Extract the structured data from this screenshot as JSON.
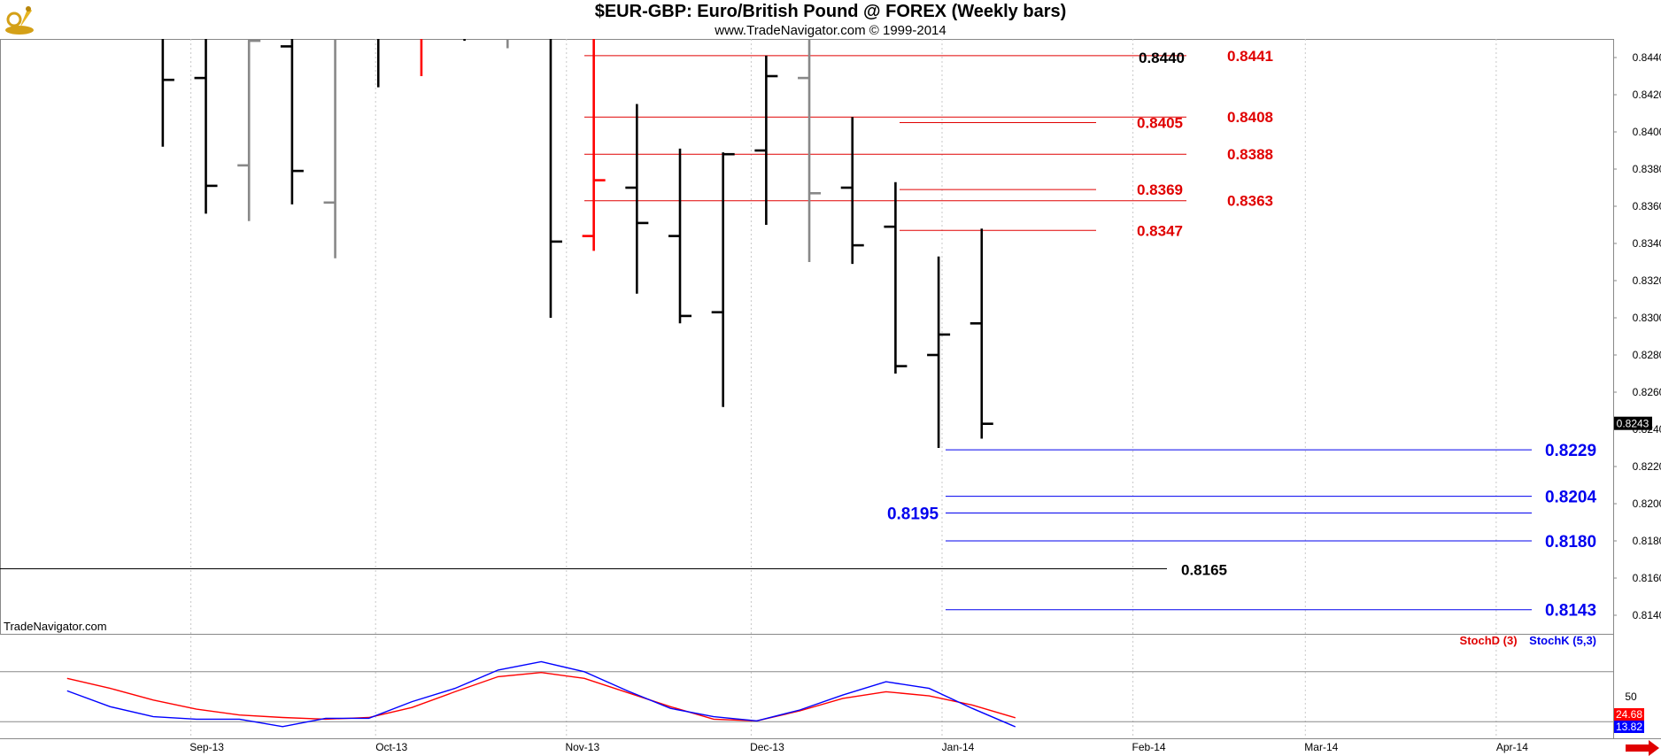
{
  "header": {
    "title": "$EUR-GBP:  Euro/British Pound @ FOREX  (Weekly bars)",
    "subtitle": "www.TradeNavigator.com © 1999-2014"
  },
  "watermark": "TradeNavigator.com",
  "legend": {
    "stoch_d": "StochD (3)",
    "stoch_k": "StochK (5,3)"
  },
  "colors": {
    "up_bar": "#000000",
    "down_bar": "#888888",
    "red_bar": "#ff0000",
    "resistance": "#e00000",
    "support": "#0000ee",
    "stoch_d": "#ff0000",
    "stoch_k": "#0000ff",
    "grid": "#c8c8c8"
  },
  "chart_data": [
    {
      "type": "ohlc",
      "title": "$EUR-GBP:  Euro/British Pound @ FOREX  (Weekly bars)",
      "ylim": [
        0.813,
        0.845
      ],
      "y_ticks": [
        "0.8440",
        "0.8420",
        "0.8400",
        "0.8380",
        "0.8360",
        "0.8340",
        "0.8320",
        "0.8300",
        "0.8280",
        "0.8260",
        "0.8240",
        "0.8220",
        "0.8200",
        "0.8180",
        "0.8160",
        "0.8140"
      ],
      "x_ticks": [
        {
          "label": "Sep-13",
          "date": "2013-09-01"
        },
        {
          "label": "Oct-13",
          "date": "2013-10-01"
        },
        {
          "label": "Nov-13",
          "date": "2013-11-01"
        },
        {
          "label": "Dec-13",
          "date": "2013-12-01"
        },
        {
          "label": "Jan-14",
          "date": "2014-01-01"
        },
        {
          "label": "Feb-14",
          "date": "2014-02-01"
        },
        {
          "label": "Mar-14",
          "date": "2014-03-01"
        },
        {
          "label": "Apr-14",
          "date": "2014-04-01"
        }
      ],
      "last_price": "0.8243",
      "bars": [
        {
          "date": "2013-08-26",
          "open": 0.845,
          "high": 0.845,
          "low": 0.8392,
          "close": 0.8428,
          "color": "black"
        },
        {
          "date": "2013-09-02",
          "open": 0.8429,
          "high": 0.845,
          "low": 0.8356,
          "close": 0.8371,
          "color": "black"
        },
        {
          "date": "2013-09-09",
          "open": 0.8382,
          "high": 0.845,
          "low": 0.8352,
          "close": 0.8449,
          "color": "gray"
        },
        {
          "date": "2013-09-16",
          "open": 0.8446,
          "high": 0.845,
          "low": 0.8361,
          "close": 0.8379,
          "color": "black"
        },
        {
          "date": "2013-09-23",
          "open": 0.8362,
          "high": 0.845,
          "low": 0.8332,
          "close": 0.845,
          "color": "gray"
        },
        {
          "date": "2013-09-30",
          "open": 0.845,
          "high": 0.845,
          "low": 0.8424,
          "close": 0.845,
          "color": "black"
        },
        {
          "date": "2013-10-07",
          "open": 0.845,
          "high": 0.845,
          "low": 0.843,
          "close": 0.845,
          "color": "red"
        },
        {
          "date": "2013-10-14",
          "open": 0.845,
          "high": 0.845,
          "low": 0.8449,
          "close": 0.845,
          "color": "black"
        },
        {
          "date": "2013-10-21",
          "open": 0.845,
          "high": 0.845,
          "low": 0.8445,
          "close": 0.845,
          "color": "gray"
        },
        {
          "date": "2013-10-28",
          "open": 0.845,
          "high": 0.845,
          "low": 0.83,
          "close": 0.8341,
          "color": "black"
        },
        {
          "date": "2013-11-04",
          "open": 0.8344,
          "high": 0.845,
          "low": 0.8336,
          "close": 0.8374,
          "color": "red"
        },
        {
          "date": "2013-11-11",
          "open": 0.837,
          "high": 0.8415,
          "low": 0.8313,
          "close": 0.8351,
          "color": "black"
        },
        {
          "date": "2013-11-18",
          "open": 0.8344,
          "high": 0.8391,
          "low": 0.8297,
          "close": 0.8301,
          "color": "black"
        },
        {
          "date": "2013-11-25",
          "open": 0.8303,
          "high": 0.8389,
          "low": 0.8252,
          "close": 0.8388,
          "color": "black"
        },
        {
          "date": "2013-12-02",
          "open": 0.839,
          "high": 0.8441,
          "low": 0.835,
          "close": 0.843,
          "color": "black"
        },
        {
          "date": "2013-12-09",
          "open": 0.8429,
          "high": 0.845,
          "low": 0.833,
          "close": 0.8367,
          "color": "gray"
        },
        {
          "date": "2013-12-16",
          "open": 0.837,
          "high": 0.8408,
          "low": 0.8329,
          "close": 0.8339,
          "color": "black"
        },
        {
          "date": "2013-12-23",
          "open": 0.8349,
          "high": 0.8373,
          "low": 0.827,
          "close": 0.8274,
          "color": "black"
        },
        {
          "date": "2013-12-30",
          "open": 0.828,
          "high": 0.8333,
          "low": 0.823,
          "close": 0.8291,
          "color": "black"
        },
        {
          "date": "2014-01-06",
          "open": 0.8297,
          "high": 0.8348,
          "low": 0.8235,
          "close": 0.8243,
          "color": "black"
        }
      ],
      "resistance_levels": [
        {
          "label": "0.8441",
          "value": 0.8441
        },
        {
          "label": "0.8405",
          "value": 0.8405
        },
        {
          "label": "0.8408",
          "value": 0.8408
        },
        {
          "label": "0.8388",
          "value": 0.8388
        },
        {
          "label": "0.8369",
          "value": 0.8369
        },
        {
          "label": "0.8363",
          "value": 0.8363
        },
        {
          "label": "0.8347",
          "value": 0.8347
        }
      ],
      "reference_level": {
        "label": "0.8440",
        "value": 0.844
      },
      "support_levels": [
        {
          "label": "0.8229",
          "value": 0.8229
        },
        {
          "label": "0.8204",
          "value": 0.8204
        },
        {
          "label": "0.8195",
          "value": 0.8195
        },
        {
          "label": "0.8180",
          "value": 0.818
        },
        {
          "label": "0.8143",
          "value": 0.8143
        }
      ],
      "horizontal_level": {
        "label": "0.8165",
        "value": 0.8165
      }
    },
    {
      "type": "line",
      "ylim": [
        0,
        100
      ],
      "y_ticks": [
        "50"
      ],
      "reference_lines": [
        20,
        80
      ],
      "series": [
        {
          "name": "StochD (3)",
          "color": "red",
          "last": "24.68",
          "values": [
            72,
            60,
            46,
            35,
            28,
            25,
            23,
            25,
            37,
            56,
            74,
            79,
            72,
            55,
            38,
            23,
            21,
            33,
            48,
            56,
            51,
            40,
            24.68
          ],
          "dates": [
            "2013-08-05",
            "2013-08-12",
            "2013-08-19",
            "2013-08-26",
            "2013-09-02",
            "2013-09-09",
            "2013-09-16",
            "2013-09-23",
            "2013-09-30",
            "2013-10-07",
            "2013-10-14",
            "2013-10-21",
            "2013-10-28",
            "2013-11-04",
            "2013-11-11",
            "2013-11-18",
            "2013-11-25",
            "2013-12-02",
            "2013-12-09",
            "2013-12-16",
            "2013-12-23",
            "2013-12-30",
            "2014-01-06"
          ]
        },
        {
          "name": "StochK (5,3)",
          "color": "blue",
          "last": "13.82",
          "values": [
            57,
            38,
            26,
            23,
            23,
            14,
            24,
            24,
            44,
            60,
            82,
            92,
            80,
            57,
            36,
            26,
            21,
            34,
            52,
            68,
            60,
            36,
            13.82
          ],
          "dates": [
            "2013-08-05",
            "2013-08-12",
            "2013-08-19",
            "2013-08-26",
            "2013-09-02",
            "2013-09-09",
            "2013-09-16",
            "2013-09-23",
            "2013-09-30",
            "2013-10-07",
            "2013-10-14",
            "2013-10-21",
            "2013-10-28",
            "2013-11-04",
            "2013-11-11",
            "2013-11-18",
            "2013-11-25",
            "2013-12-02",
            "2013-12-09",
            "2013-12-16",
            "2013-12-23",
            "2013-12-30",
            "2014-01-06"
          ]
        }
      ]
    }
  ]
}
